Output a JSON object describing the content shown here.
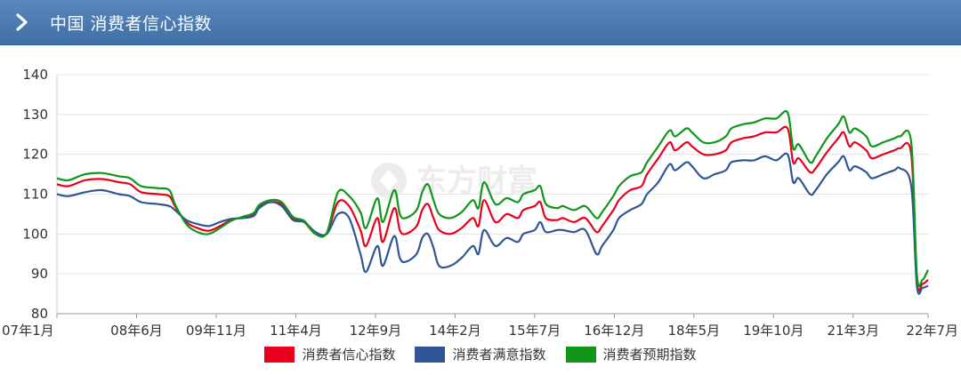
{
  "header": {
    "title": "中国 消费者信心指数"
  },
  "colors": {
    "header_bg": "#4a7ab2",
    "confidence": "#e8001c",
    "satisfaction": "#2f5597",
    "expectation": "#109618"
  },
  "chart_data": {
    "type": "line",
    "title": "中国 消费者信心指数",
    "ylim": [
      80,
      140
    ],
    "yticks": [
      80,
      90,
      100,
      110,
      120,
      130,
      140
    ],
    "xlim": [
      2007.0,
      2022.5
    ],
    "xticks": [
      {
        "label": "07年1月",
        "value": 2007.0
      },
      {
        "label": "08年6月",
        "value": 2008.4167
      },
      {
        "label": "09年11月",
        "value": 2009.8333
      },
      {
        "label": "11年4月",
        "value": 2011.25
      },
      {
        "label": "12年9月",
        "value": 2012.6667
      },
      {
        "label": "14年2月",
        "value": 2014.0833
      },
      {
        "label": "15年7月",
        "value": 2015.5
      },
      {
        "label": "16年12月",
        "value": 2016.9167
      },
      {
        "label": "18年5月",
        "value": 2018.3333
      },
      {
        "label": "19年10月",
        "value": 2019.75
      },
      {
        "label": "21年3月",
        "value": 2021.1667
      },
      {
        "label": "22年7月",
        "value": 2022.5
      }
    ],
    "grid": "horizontal",
    "legend": "bottom",
    "series": [
      {
        "name": "消费者信心指数",
        "color": "#e8001c",
        "points": [
          [
            2007.0,
            112.5
          ],
          [
            2007.2,
            112
          ],
          [
            2007.5,
            113.5
          ],
          [
            2007.8,
            113.8
          ],
          [
            2008.1,
            113
          ],
          [
            2008.3,
            112.5
          ],
          [
            2008.5,
            110.5
          ],
          [
            2008.8,
            110
          ],
          [
            2009.0,
            109.5
          ],
          [
            2009.1,
            107
          ],
          [
            2009.3,
            103
          ],
          [
            2009.5,
            101.5
          ],
          [
            2009.7,
            100.8
          ],
          [
            2009.9,
            102
          ],
          [
            2010.1,
            103.5
          ],
          [
            2010.3,
            104.2
          ],
          [
            2010.5,
            105
          ],
          [
            2010.6,
            107
          ],
          [
            2010.8,
            108
          ],
          [
            2011.0,
            107.5
          ],
          [
            2011.2,
            104
          ],
          [
            2011.4,
            103
          ],
          [
            2011.6,
            100
          ],
          [
            2011.8,
            100.2
          ],
          [
            2012.0,
            108
          ],
          [
            2012.2,
            107
          ],
          [
            2012.4,
            101
          ],
          [
            2012.5,
            97
          ],
          [
            2012.7,
            104
          ],
          [
            2012.8,
            98
          ],
          [
            2013.0,
            106.5
          ],
          [
            2013.1,
            101
          ],
          [
            2013.2,
            100
          ],
          [
            2013.4,
            102
          ],
          [
            2013.5,
            106
          ],
          [
            2013.6,
            107.5
          ],
          [
            2013.7,
            104
          ],
          [
            2013.8,
            101
          ],
          [
            2014.0,
            100
          ],
          [
            2014.2,
            101.5
          ],
          [
            2014.4,
            104
          ],
          [
            2014.5,
            102
          ],
          [
            2014.6,
            108.5
          ],
          [
            2014.8,
            103
          ],
          [
            2015.0,
            105
          ],
          [
            2015.2,
            104
          ],
          [
            2015.3,
            106
          ],
          [
            2015.5,
            107
          ],
          [
            2015.6,
            108
          ],
          [
            2015.7,
            104
          ],
          [
            2015.9,
            103.5
          ],
          [
            2016.0,
            104
          ],
          [
            2016.2,
            103
          ],
          [
            2016.4,
            104
          ],
          [
            2016.6,
            100.5
          ],
          [
            2016.7,
            102
          ],
          [
            2016.9,
            106
          ],
          [
            2017.0,
            108.5
          ],
          [
            2017.2,
            111
          ],
          [
            2017.4,
            112
          ],
          [
            2017.5,
            115
          ],
          [
            2017.7,
            119
          ],
          [
            2017.9,
            123
          ],
          [
            2018.0,
            121
          ],
          [
            2018.2,
            123
          ],
          [
            2018.3,
            122
          ],
          [
            2018.5,
            120
          ],
          [
            2018.7,
            120
          ],
          [
            2018.9,
            121
          ],
          [
            2019.0,
            123
          ],
          [
            2019.2,
            124
          ],
          [
            2019.4,
            124.5
          ],
          [
            2019.6,
            125.5
          ],
          [
            2019.8,
            125.5
          ],
          [
            2020.0,
            126.5
          ],
          [
            2020.1,
            118
          ],
          [
            2020.2,
            119
          ],
          [
            2020.4,
            115.5
          ],
          [
            2020.5,
            116.5
          ],
          [
            2020.7,
            120.5
          ],
          [
            2020.9,
            124
          ],
          [
            2021.0,
            125.5
          ],
          [
            2021.1,
            122
          ],
          [
            2021.2,
            123
          ],
          [
            2021.4,
            121
          ],
          [
            2021.5,
            119
          ],
          [
            2021.7,
            120
          ],
          [
            2021.9,
            121
          ],
          [
            2022.0,
            121.5
          ],
          [
            2022.2,
            120
          ],
          [
            2022.3,
            88.5
          ],
          [
            2022.4,
            87.5
          ],
          [
            2022.5,
            88.5
          ]
        ]
      },
      {
        "name": "消费者满意指数",
        "color": "#2f5597",
        "points": [
          [
            2007.0,
            110
          ],
          [
            2007.2,
            109.5
          ],
          [
            2007.5,
            110.5
          ],
          [
            2007.8,
            111
          ],
          [
            2008.1,
            110
          ],
          [
            2008.3,
            109.5
          ],
          [
            2008.5,
            108
          ],
          [
            2008.8,
            107.5
          ],
          [
            2009.0,
            107
          ],
          [
            2009.1,
            106
          ],
          [
            2009.3,
            103.5
          ],
          [
            2009.5,
            102.5
          ],
          [
            2009.7,
            102
          ],
          [
            2009.9,
            103
          ],
          [
            2010.1,
            103.8
          ],
          [
            2010.3,
            104
          ],
          [
            2010.5,
            104.5
          ],
          [
            2010.6,
            106.5
          ],
          [
            2010.8,
            108
          ],
          [
            2011.0,
            107
          ],
          [
            2011.2,
            103.5
          ],
          [
            2011.4,
            103
          ],
          [
            2011.6,
            100.5
          ],
          [
            2011.8,
            100
          ],
          [
            2012.0,
            105
          ],
          [
            2012.2,
            104
          ],
          [
            2012.4,
            95
          ],
          [
            2012.5,
            90.5
          ],
          [
            2012.7,
            97
          ],
          [
            2012.8,
            92
          ],
          [
            2013.0,
            99.5
          ],
          [
            2013.1,
            94
          ],
          [
            2013.2,
            93
          ],
          [
            2013.4,
            95
          ],
          [
            2013.5,
            99
          ],
          [
            2013.6,
            100
          ],
          [
            2013.7,
            96.5
          ],
          [
            2013.8,
            92
          ],
          [
            2014.0,
            92
          ],
          [
            2014.2,
            94
          ],
          [
            2014.4,
            97
          ],
          [
            2014.5,
            95
          ],
          [
            2014.6,
            101
          ],
          [
            2014.8,
            97
          ],
          [
            2015.0,
            99
          ],
          [
            2015.2,
            98
          ],
          [
            2015.3,
            100
          ],
          [
            2015.5,
            101
          ],
          [
            2015.6,
            103
          ],
          [
            2015.7,
            100.5
          ],
          [
            2015.9,
            101
          ],
          [
            2016.0,
            101
          ],
          [
            2016.2,
            100.5
          ],
          [
            2016.4,
            101
          ],
          [
            2016.6,
            95
          ],
          [
            2016.7,
            97
          ],
          [
            2016.9,
            101
          ],
          [
            2017.0,
            104
          ],
          [
            2017.2,
            106
          ],
          [
            2017.4,
            107.5
          ],
          [
            2017.5,
            110
          ],
          [
            2017.7,
            113
          ],
          [
            2017.9,
            117.5
          ],
          [
            2018.0,
            116
          ],
          [
            2018.2,
            118
          ],
          [
            2018.3,
            117
          ],
          [
            2018.5,
            114
          ],
          [
            2018.7,
            115
          ],
          [
            2018.9,
            116
          ],
          [
            2019.0,
            118
          ],
          [
            2019.2,
            118.5
          ],
          [
            2019.4,
            118.5
          ],
          [
            2019.6,
            119.5
          ],
          [
            2019.8,
            118.5
          ],
          [
            2020.0,
            120
          ],
          [
            2020.1,
            113
          ],
          [
            2020.2,
            114
          ],
          [
            2020.4,
            110
          ],
          [
            2020.5,
            111
          ],
          [
            2020.7,
            115
          ],
          [
            2020.9,
            118
          ],
          [
            2021.0,
            119.5
          ],
          [
            2021.1,
            116
          ],
          [
            2021.2,
            117
          ],
          [
            2021.4,
            115.5
          ],
          [
            2021.5,
            114
          ],
          [
            2021.7,
            115
          ],
          [
            2021.9,
            116
          ],
          [
            2022.0,
            116.5
          ],
          [
            2022.2,
            112
          ],
          [
            2022.3,
            87
          ],
          [
            2022.4,
            86.5
          ],
          [
            2022.5,
            87
          ]
        ]
      },
      {
        "name": "消费者预期指数",
        "color": "#109618",
        "points": [
          [
            2007.0,
            114
          ],
          [
            2007.2,
            113.5
          ],
          [
            2007.5,
            115
          ],
          [
            2007.8,
            115.3
          ],
          [
            2008.1,
            114.5
          ],
          [
            2008.3,
            114
          ],
          [
            2008.5,
            112
          ],
          [
            2008.8,
            111.5
          ],
          [
            2009.0,
            111
          ],
          [
            2009.1,
            107.5
          ],
          [
            2009.3,
            102.5
          ],
          [
            2009.5,
            100.5
          ],
          [
            2009.7,
            100
          ],
          [
            2009.9,
            101.5
          ],
          [
            2010.1,
            103.3
          ],
          [
            2010.3,
            104.3
          ],
          [
            2010.5,
            105.3
          ],
          [
            2010.6,
            107.3
          ],
          [
            2010.8,
            108.5
          ],
          [
            2011.0,
            108
          ],
          [
            2011.2,
            104.3
          ],
          [
            2011.4,
            103.3
          ],
          [
            2011.6,
            100
          ],
          [
            2011.8,
            100.3
          ],
          [
            2012.0,
            110.5
          ],
          [
            2012.2,
            109.5
          ],
          [
            2012.4,
            105.5
          ],
          [
            2012.5,
            101.5
          ],
          [
            2012.7,
            109
          ],
          [
            2012.8,
            103
          ],
          [
            2013.0,
            111
          ],
          [
            2013.1,
            105
          ],
          [
            2013.2,
            104
          ],
          [
            2013.4,
            106
          ],
          [
            2013.5,
            110.5
          ],
          [
            2013.6,
            112.5
          ],
          [
            2013.7,
            108.5
          ],
          [
            2013.8,
            105
          ],
          [
            2014.0,
            104
          ],
          [
            2014.2,
            105.5
          ],
          [
            2014.4,
            108.5
          ],
          [
            2014.5,
            106.5
          ],
          [
            2014.6,
            113
          ],
          [
            2014.8,
            107.5
          ],
          [
            2015.0,
            109
          ],
          [
            2015.2,
            108
          ],
          [
            2015.3,
            110
          ],
          [
            2015.5,
            111
          ],
          [
            2015.6,
            112
          ],
          [
            2015.7,
            107.5
          ],
          [
            2015.9,
            106.5
          ],
          [
            2016.0,
            107
          ],
          [
            2016.2,
            106
          ],
          [
            2016.4,
            107
          ],
          [
            2016.6,
            104
          ],
          [
            2016.7,
            105.5
          ],
          [
            2016.9,
            109.5
          ],
          [
            2017.0,
            112
          ],
          [
            2017.2,
            114.5
          ],
          [
            2017.4,
            115.5
          ],
          [
            2017.5,
            118
          ],
          [
            2017.7,
            122
          ],
          [
            2017.9,
            126
          ],
          [
            2018.0,
            124.5
          ],
          [
            2018.2,
            126.5
          ],
          [
            2018.3,
            125.5
          ],
          [
            2018.5,
            123
          ],
          [
            2018.7,
            123
          ],
          [
            2018.9,
            124.5
          ],
          [
            2019.0,
            126.5
          ],
          [
            2019.2,
            127.5
          ],
          [
            2019.4,
            128
          ],
          [
            2019.6,
            129
          ],
          [
            2019.8,
            129
          ],
          [
            2020.0,
            130.5
          ],
          [
            2020.1,
            121.5
          ],
          [
            2020.2,
            122.5
          ],
          [
            2020.4,
            118
          ],
          [
            2020.5,
            119.5
          ],
          [
            2020.7,
            124
          ],
          [
            2020.9,
            127.5
          ],
          [
            2021.0,
            129.5
          ],
          [
            2021.1,
            125.5
          ],
          [
            2021.2,
            126.5
          ],
          [
            2021.4,
            124.5
          ],
          [
            2021.5,
            122
          ],
          [
            2021.7,
            123
          ],
          [
            2021.9,
            124
          ],
          [
            2022.0,
            124.5
          ],
          [
            2022.2,
            123
          ],
          [
            2022.3,
            90
          ],
          [
            2022.4,
            88.5
          ],
          [
            2022.5,
            91
          ]
        ]
      }
    ]
  },
  "watermark": {
    "text": "东方财富"
  }
}
